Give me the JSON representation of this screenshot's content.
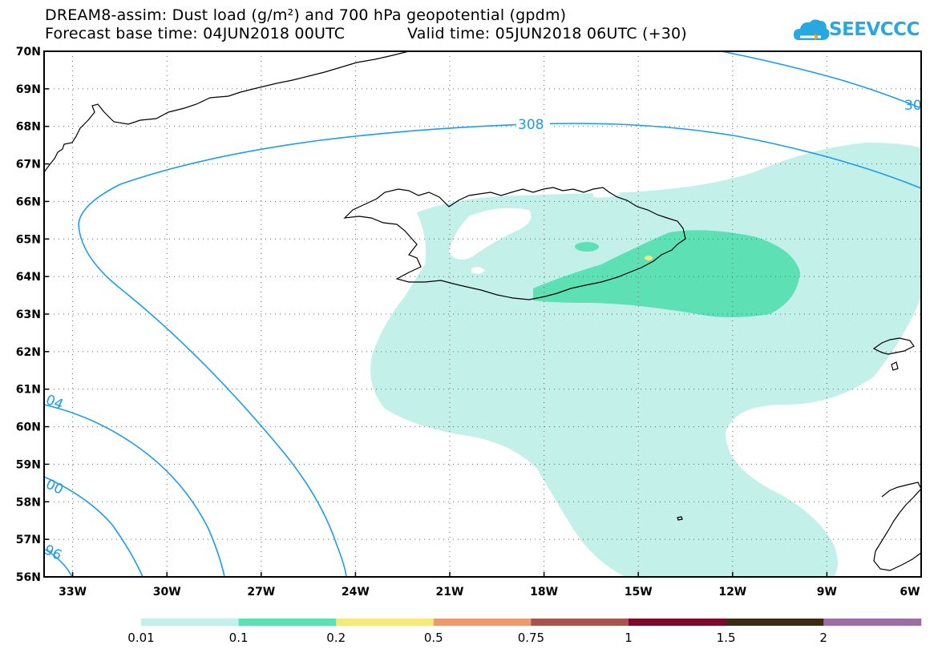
{
  "header": {
    "title_line1": "DREAM8-assim: Dust load (g/m²) and 700 hPa geopotential (gpdm)",
    "title_line2_left": "Forecast base time: 04JUN2018 00UTC",
    "title_line2_right": "Valid time: 05JUN2018 06UTC (+30)"
  },
  "logo": {
    "text": "SEEVCCC",
    "icon": "cloud-logo-icon",
    "color": "#29a8e0"
  },
  "map": {
    "lat_labels": [
      "70N",
      "69N",
      "68N",
      "67N",
      "66N",
      "65N",
      "64N",
      "63N",
      "62N",
      "61N",
      "60N",
      "59N",
      "58N",
      "57N",
      "56N"
    ],
    "lon_labels": [
      "33W",
      "30W",
      "27W",
      "24W",
      "21W",
      "18W",
      "15W",
      "12W",
      "9W",
      "6W"
    ],
    "contour_labels": [
      "308",
      "30",
      "04",
      "00",
      "96"
    ],
    "contour_color": "#1a9cf0",
    "coast_color": "#000000",
    "grid": "dotted"
  },
  "legend": {
    "labels": [
      "0.01",
      "0.1",
      "0.2",
      "0.5",
      "0.75",
      "1",
      "1.5",
      "2"
    ],
    "colors": [
      "#c3f0e8",
      "#5ce0b4",
      "#f7ea7c",
      "#ee9a70",
      "#a7554c",
      "#7d0a2c",
      "#3d2a14",
      "#9b6ea4"
    ]
  }
}
